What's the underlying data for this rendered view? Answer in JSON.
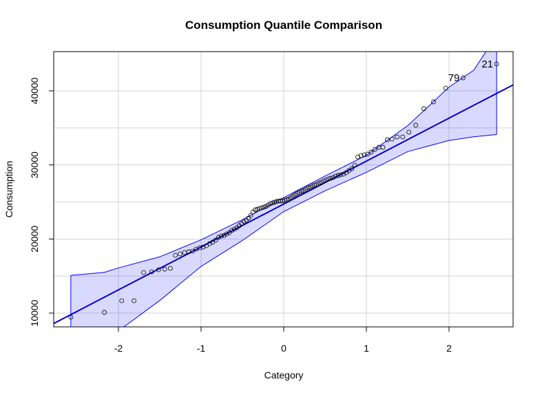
{
  "chart_data": {
    "type": "qq",
    "title": "Consumption Quantile Comparison",
    "x_label": "Category",
    "y_label": "Consumption",
    "xlim": [
      -2.783,
      2.775
    ],
    "ylim": [
      8142,
      45294
    ],
    "xticks": [
      -2,
      -1,
      0,
      1,
      2
    ],
    "yticks": [
      10000,
      20000,
      30000,
      40000
    ],
    "xgrid": [
      -2,
      -1,
      0,
      1,
      2
    ],
    "ygrid": [
      10000,
      15000,
      20000,
      25000,
      30000,
      35000,
      40000
    ],
    "grid": true,
    "point_color": "#000000",
    "line_color": "#0000cd",
    "band_color": "#0000ff",
    "x": [
      -2.576,
      -2.17,
      -1.96,
      -1.812,
      -1.695,
      -1.598,
      -1.514,
      -1.44,
      -1.372,
      -1.311,
      -1.254,
      -1.2,
      -1.15,
      -1.103,
      -1.058,
      -1.015,
      -0.974,
      -0.935,
      -0.896,
      -0.86,
      -0.824,
      -0.789,
      -0.755,
      -0.722,
      -0.69,
      -0.659,
      -0.628,
      -0.598,
      -0.568,
      -0.539,
      -0.51,
      -0.482,
      -0.454,
      -0.426,
      -0.399,
      -0.372,
      -0.345,
      -0.319,
      -0.292,
      -0.266,
      -0.24,
      -0.215,
      -0.189,
      -0.164,
      -0.138,
      -0.113,
      -0.088,
      -0.063,
      -0.038,
      -0.013,
      0.013,
      0.038,
      0.063,
      0.088,
      0.113,
      0.138,
      0.164,
      0.189,
      0.215,
      0.24,
      0.266,
      0.292,
      0.319,
      0.345,
      0.372,
      0.399,
      0.426,
      0.454,
      0.482,
      0.51,
      0.539,
      0.568,
      0.598,
      0.628,
      0.659,
      0.69,
      0.722,
      0.755,
      0.789,
      0.824,
      0.86,
      0.896,
      0.935,
      0.974,
      1.015,
      1.058,
      1.103,
      1.15,
      1.2,
      1.254,
      1.311,
      1.372,
      1.44,
      1.514,
      1.598,
      1.695,
      1.812,
      1.96,
      2.17,
      2.576
    ],
    "values": [
      9440,
      10100,
      11670,
      11670,
      15480,
      15570,
      15850,
      15940,
      16040,
      17800,
      17990,
      18170,
      18270,
      18360,
      18640,
      18820,
      18910,
      19100,
      19380,
      19570,
      19850,
      20220,
      20400,
      20490,
      20680,
      20860,
      21150,
      21330,
      21520,
      21800,
      22070,
      22350,
      22540,
      22820,
      23190,
      23650,
      23930,
      24020,
      24120,
      24210,
      24300,
      24400,
      24580,
      24770,
      24860,
      24960,
      25050,
      25140,
      25140,
      25140,
      25230,
      25320,
      25420,
      25600,
      25790,
      25980,
      26160,
      26300,
      26440,
      26540,
      26720,
      26900,
      27000,
      27150,
      27280,
      27370,
      27550,
      27650,
      27830,
      27970,
      28110,
      28200,
      28300,
      28480,
      28580,
      28670,
      28760,
      28950,
      29230,
      29500,
      29970,
      31080,
      31270,
      31360,
      31460,
      31730,
      32100,
      32380,
      32380,
      33400,
      33500,
      33780,
      33780,
      34430,
      35360,
      37590,
      38510,
      40370,
      41760,
      43620
    ],
    "fit_line": {
      "x": [
        -2.783,
        2.775
      ],
      "y": [
        8600,
        40800
      ]
    },
    "band": {
      "x": [
        -2.576,
        -2.17,
        -2,
        -1.5,
        -1,
        -0.5,
        0,
        0.5,
        1,
        1.5,
        2,
        2.3,
        2.576
      ],
      "upper": [
        15100,
        15500,
        16100,
        17600,
        19900,
        22600,
        25600,
        28500,
        31300,
        35300,
        40500,
        42800,
        47500
      ],
      "lower": [
        3000,
        6400,
        7600,
        11700,
        16300,
        19800,
        23700,
        26500,
        29000,
        31800,
        33300,
        33800,
        34100
      ]
    },
    "annotations": [
      {
        "text": "79",
        "x": 2.17,
        "y": 41760
      },
      {
        "text": "21",
        "x": 2.576,
        "y": 43620
      }
    ]
  }
}
